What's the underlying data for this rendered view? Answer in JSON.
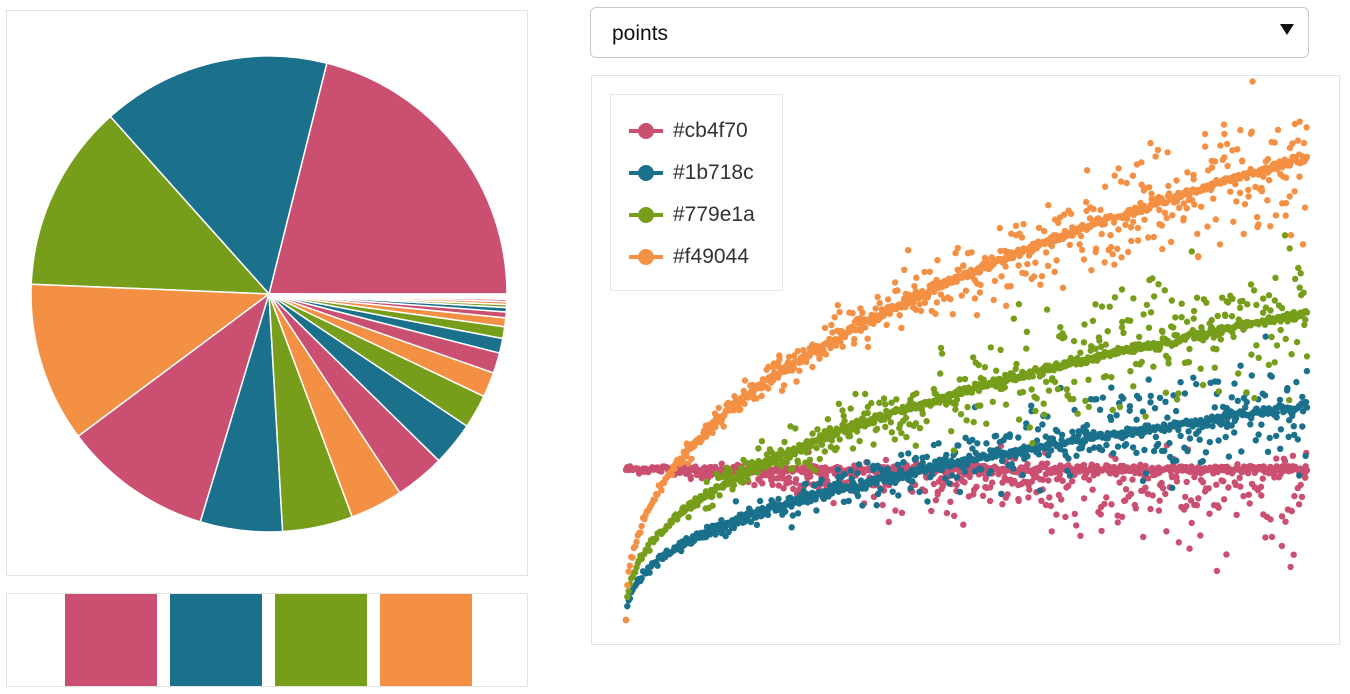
{
  "colors": [
    "#cb4f70",
    "#1b718c",
    "#779e1a",
    "#f49044"
  ],
  "palette_swatches": [
    {
      "color": "#cb4f70"
    },
    {
      "color": "#1b718c"
    },
    {
      "color": "#779e1a"
    },
    {
      "color": "#f49044"
    }
  ],
  "select": {
    "value": "points",
    "options": [
      "points"
    ]
  },
  "legend": {
    "items": [
      {
        "label": "#cb4f70",
        "color": "#cb4f70"
      },
      {
        "label": "#1b718c",
        "color": "#1b718c"
      },
      {
        "label": "#779e1a",
        "color": "#779e1a"
      },
      {
        "label": "#f49044",
        "color": "#f49044"
      }
    ]
  },
  "chart_data": [
    {
      "type": "pie",
      "title": "",
      "start": "3 o'clock, counter-clockwise",
      "values": [
        21.2,
        15.6,
        12.8,
        10.9,
        10.2,
        5.6,
        4.8,
        3.6,
        3.4,
        3.0,
        2.3,
        1.7,
        1.4,
        1.0,
        0.8,
        0.6,
        0.4,
        0.3,
        0.2,
        0.2,
        0.15,
        0.1,
        0.1,
        0.07,
        0.05,
        0.04
      ],
      "colors_cycle": [
        "#cb4f70",
        "#1b718c",
        "#779e1a",
        "#f49044"
      ]
    },
    {
      "type": "scatter",
      "title": "",
      "xlabel": "",
      "ylabel": "",
      "axes_visible": false,
      "legend_position": "top-left",
      "xlim": [
        0,
        1
      ],
      "ylim": [
        0,
        1
      ],
      "series": [
        {
          "name": "#cb4f70",
          "color": "#cb4f70",
          "trend": "flat",
          "start": 0.29,
          "end": 0.29,
          "spread_end": 0.13,
          "skew": "below"
        },
        {
          "name": "#1b718c",
          "color": "#1b718c",
          "trend": "slow rise",
          "start": 0.0,
          "end": 0.41,
          "spread_end": 0.1
        },
        {
          "name": "#779e1a",
          "color": "#779e1a",
          "trend": "rise",
          "start": 0.0,
          "end": 0.59,
          "spread_end": 0.14
        },
        {
          "name": "#f49044",
          "color": "#f49044",
          "trend": "fast rise",
          "start": 0.0,
          "end": 0.89,
          "spread_end": 0.12
        }
      ]
    }
  ]
}
